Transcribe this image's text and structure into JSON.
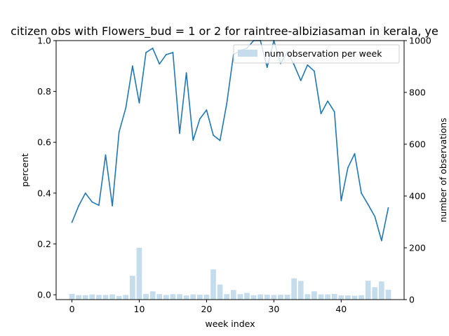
{
  "chart_data": {
    "type": "line",
    "title": "citizen obs with Flowers_bud = 1 or 2 for raintree-albiziasaman in kerala, ye",
    "xlabel": "week index",
    "ylabel": "percent",
    "y2label": "number of observations",
    "xlim": [
      -2.35,
      49.35
    ],
    "ylim": [
      -0.019,
      1.0
    ],
    "y2lim": [
      0,
      1000
    ],
    "xticks": [
      0,
      10,
      20,
      30,
      40
    ],
    "yticks": [
      0.0,
      0.2,
      0.4,
      0.6,
      0.8,
      1.0
    ],
    "y2ticks": [
      0,
      200,
      400,
      600,
      800,
      1000
    ],
    "legend_position": "top-right",
    "line_color": "#1f77b4",
    "bar_color": "#c5dcec",
    "x": [
      0,
      1,
      2,
      3,
      4,
      5,
      6,
      7,
      8,
      9,
      10,
      11,
      12,
      13,
      14,
      15,
      16,
      17,
      18,
      19,
      20,
      21,
      22,
      23,
      24,
      25,
      26,
      27,
      28,
      29,
      30,
      31,
      32,
      33,
      34,
      35,
      36,
      37,
      38,
      39,
      40,
      41,
      42,
      43,
      44,
      45,
      46,
      47
    ],
    "series": [
      {
        "axis": "left",
        "style": "line",
        "values": [
          0.285,
          0.35,
          0.4,
          0.365,
          0.352,
          0.55,
          0.35,
          0.64,
          0.735,
          0.9,
          0.755,
          0.953,
          0.97,
          0.908,
          0.945,
          0.953,
          0.635,
          0.873,
          0.608,
          0.692,
          0.727,
          0.628,
          0.607,
          0.752,
          0.945,
          0.96,
          0.97,
          1.0,
          1.0,
          0.895,
          1.0,
          0.91,
          0.955,
          0.905,
          0.843,
          0.904,
          0.88,
          0.713,
          0.762,
          0.72,
          0.37,
          0.5,
          0.555,
          0.4,
          0.355,
          0.308,
          0.213,
          0.342
        ]
      },
      {
        "name": "num observation per week",
        "axis": "right",
        "style": "bar",
        "values": [
          22,
          17,
          17,
          20,
          18,
          18,
          20,
          14,
          18,
          92,
          200,
          22,
          32,
          21,
          18,
          21,
          21,
          16,
          20,
          19,
          19,
          117,
          58,
          21,
          37,
          21,
          26,
          17,
          20,
          19,
          18,
          19,
          19,
          82,
          72,
          21,
          32,
          20,
          20,
          22,
          16,
          16,
          15,
          17,
          73,
          48,
          70,
          38
        ]
      }
    ]
  }
}
